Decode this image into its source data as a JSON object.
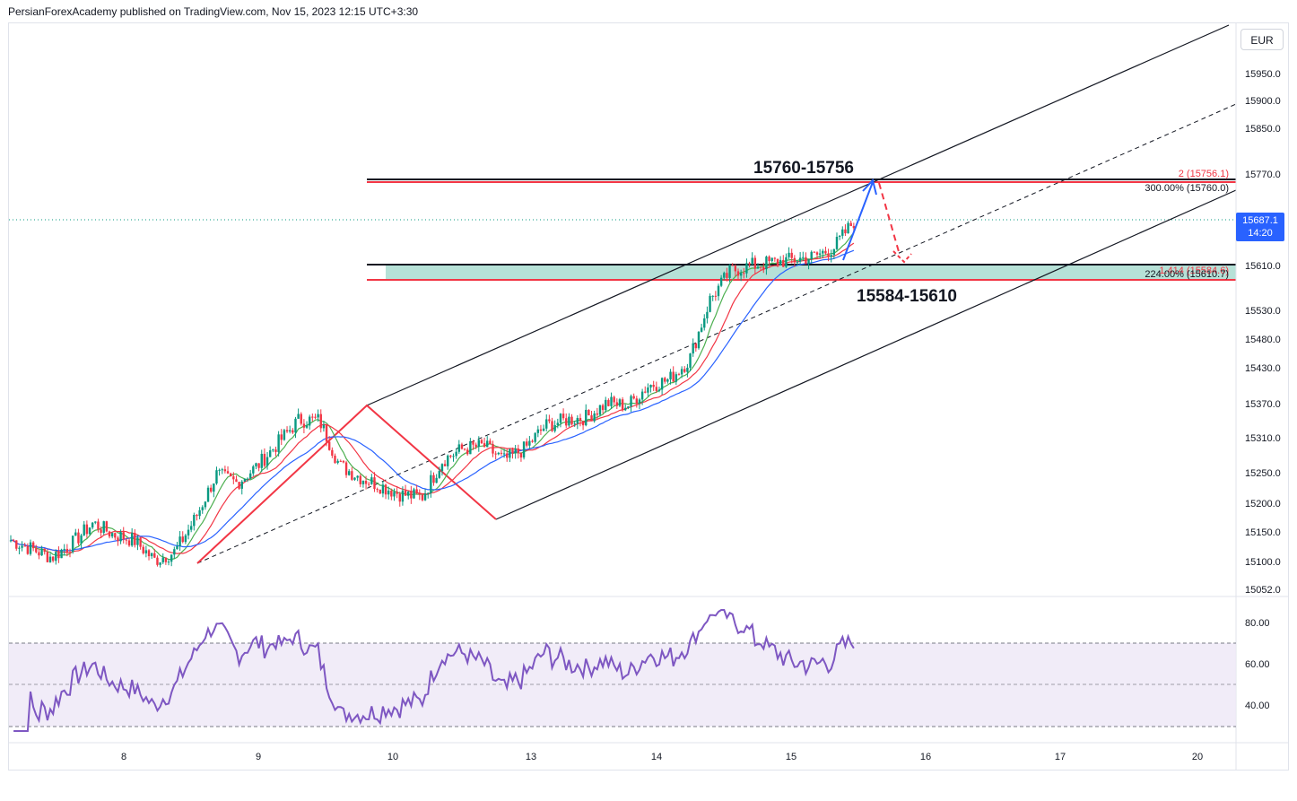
{
  "header": {
    "publisher_line": "PersianForexAcademy published on TradingView.com, Nov 15, 2023 12:15 UTC+3:30"
  },
  "currency_button": "EUR",
  "last_price": {
    "value": "15687.1",
    "countdown": "14:20"
  },
  "annotations": {
    "upper_zone": "15760-15756",
    "lower_zone": "15584-15610",
    "fib_upper_red": "2 (15756.1)",
    "fib_upper_black": "300.00% (15760.0)",
    "fib_lower_red": "1.414 (15584.6)",
    "fib_lower_black": "224.00% (15610.7)"
  },
  "colors": {
    "up_candle": "#089981",
    "down_candle": "#f23645",
    "ma_green": "#4caf50",
    "ma_red": "#f23645",
    "ma_blue": "#2962ff",
    "zone_fill": "#a9dcd0",
    "rsi_line": "#7e57c2",
    "rsi_band": "#ede7f6",
    "projection_up": "#2962ff",
    "projection_down": "#f23645"
  },
  "chart_data": {
    "type": "candlestick",
    "y_axis_ticks": [
      "15950.0",
      "15900.0",
      "15850.0",
      "15770.0",
      "15610.0",
      "15530.0",
      "15480.0",
      "15430.0",
      "15370.0",
      "15310.0",
      "15250.0",
      "15200.0",
      "15150.0",
      "15100.0",
      "15052.0"
    ],
    "x_axis_ticks": [
      "8",
      "9",
      "10",
      "13",
      "14",
      "15",
      "16",
      "17",
      "20"
    ],
    "ylim": [
      15052,
      15980
    ],
    "close_path_approx": [
      15130,
      15115,
      15100,
      15125,
      15160,
      15140,
      15130,
      15095,
      15110,
      15170,
      15245,
      15230,
      15260,
      15300,
      15340,
      15340,
      15260,
      15240,
      15225,
      15210,
      15205,
      15270,
      15290,
      15295,
      15270,
      15290,
      15330,
      15340,
      15345,
      15370,
      15365,
      15400,
      15410,
      15445,
      15550,
      15600,
      15610,
      15615,
      15620,
      15625,
      15640,
      15687
    ],
    "horizontal_levels": [
      15760.0,
      15756.1,
      15610.7,
      15584.6
    ],
    "rsi": {
      "ticks": [
        "80.00",
        "60.00",
        "40.00"
      ],
      "overbought": 70,
      "oversold": 30,
      "ylim": [
        20,
        90
      ]
    }
  }
}
